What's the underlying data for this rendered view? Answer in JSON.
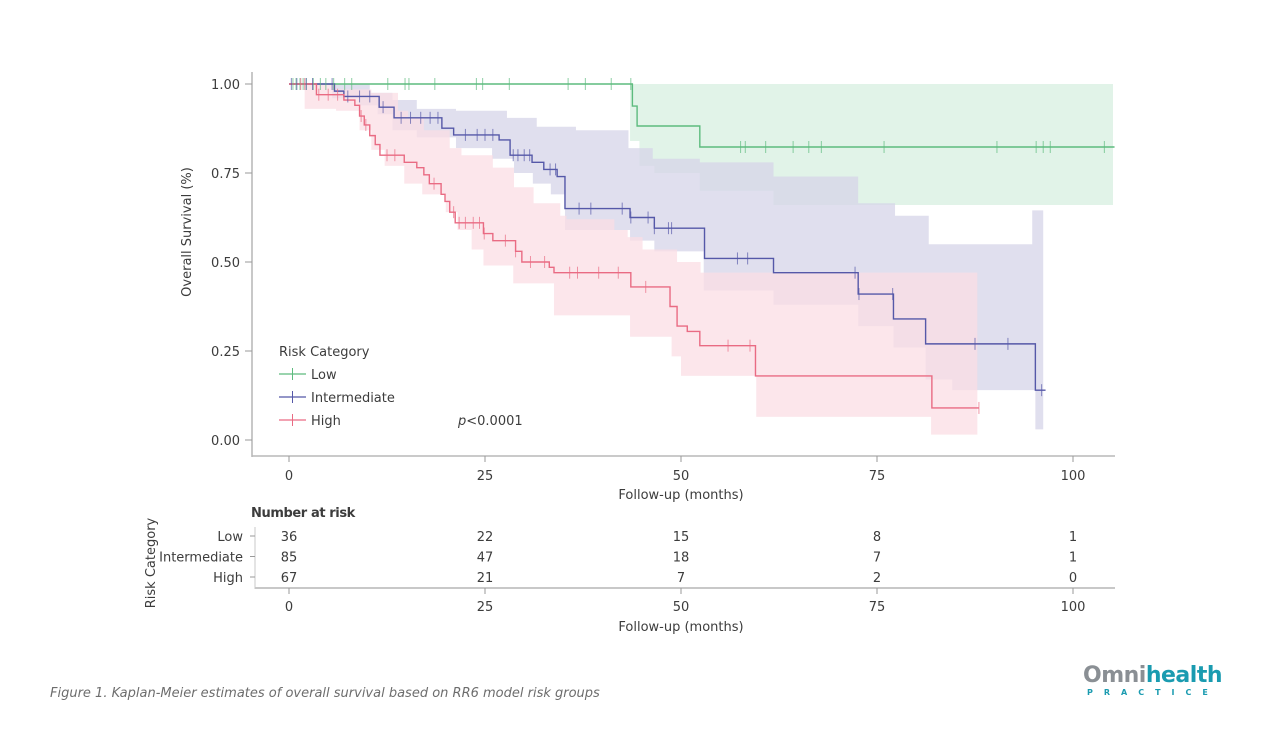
{
  "caption": "Figure 1. Kaplan-Meier estimates of overall survival based on RR6 model risk groups",
  "logo": {
    "part1": "Omni",
    "part2": "health",
    "sub": "PRACTICE"
  },
  "chart_data": {
    "type": "line",
    "subtype": "kaplan-meier",
    "title": "",
    "xlabel": "Follow-up (months)",
    "ylabel": "Overall Survival (%)",
    "xlim": [
      -5,
      105
    ],
    "ylim": [
      -0.04,
      1.03
    ],
    "xticks": [
      0,
      25,
      50,
      75,
      100
    ],
    "xtick_labels": [
      "0",
      "25",
      "50",
      "75",
      "100"
    ],
    "yticks": [
      0,
      0.25,
      0.5,
      0.75,
      1.0
    ],
    "ytick_labels": [
      "0.00",
      "0.25",
      "0.50",
      "0.75",
      "1.00"
    ],
    "grid": false,
    "legend": {
      "title": "Risk Category",
      "position": "bottom-left",
      "entries": [
        "Low",
        "Intermediate",
        "High"
      ]
    },
    "annotation": {
      "prefix": "p",
      "text": "<0.0001"
    },
    "series": [
      {
        "name": "Low",
        "color": "#5dbb7e",
        "band_color": "#d7efe0",
        "steps": [
          [
            0,
            1.0
          ],
          [
            43.8,
            0.938
          ],
          [
            44.4,
            0.882
          ],
          [
            52.4,
            0.823
          ],
          [
            105.3,
            0.823
          ]
        ],
        "censored": [
          0.5,
          0.9,
          1.4,
          1.8,
          2.2,
          3.1,
          4.0,
          4.7,
          5.7,
          7.1,
          8.0,
          12.6,
          14.8,
          15.3,
          18.6,
          23.9,
          24.7,
          28.1,
          35.6,
          37.8,
          41.1,
          43.6,
          57.6,
          58.2,
          60.8,
          64.3,
          66.3,
          67.9,
          75.9,
          90.3,
          95.3,
          96.2,
          97.1,
          104.0
        ],
        "ci_upper": [
          [
            0,
            1.0
          ],
          [
            105.1,
            1.0
          ]
        ],
        "ci_lower": [
          [
            0,
            1.0
          ],
          [
            43.5,
            0.84
          ],
          [
            44.7,
            0.77
          ],
          [
            46.6,
            0.75
          ],
          [
            52.4,
            0.7
          ],
          [
            61.8,
            0.66
          ],
          [
            105.1,
            0.66
          ]
        ]
      },
      {
        "name": "Intermediate",
        "color": "#5558a8",
        "band_color": "#d5d4e8",
        "steps": [
          [
            0,
            1.0
          ],
          [
            5.8,
            0.98
          ],
          [
            7.0,
            0.965
          ],
          [
            11.5,
            0.935
          ],
          [
            13.4,
            0.905
          ],
          [
            19.5,
            0.876
          ],
          [
            21.0,
            0.857
          ],
          [
            26.8,
            0.843
          ],
          [
            28.2,
            0.8
          ],
          [
            31.0,
            0.78
          ],
          [
            32.5,
            0.76
          ],
          [
            34.2,
            0.74
          ],
          [
            35.2,
            0.65
          ],
          [
            43.5,
            0.625
          ],
          [
            46.6,
            0.595
          ],
          [
            53.0,
            0.51
          ],
          [
            61.8,
            0.47
          ],
          [
            72.6,
            0.41
          ],
          [
            77.1,
            0.34
          ],
          [
            81.2,
            0.27
          ],
          [
            95.2,
            0.14
          ],
          [
            96.5,
            0.14
          ]
        ],
        "censored": [
          0.3,
          1.0,
          2.2,
          3.0,
          5.5,
          7.5,
          9.0,
          10.3,
          12.0,
          14.3,
          15.5,
          16.8,
          18.0,
          19.0,
          22.5,
          24.0,
          25.0,
          26.0,
          28.6,
          29.2,
          30.0,
          30.7,
          33.3,
          34.0,
          37.0,
          38.5,
          42.5,
          43.6,
          45.8,
          46.6,
          48.4,
          48.8,
          57.2,
          58.5,
          72.2,
          72.7,
          77.0,
          87.5,
          91.7,
          96.0
        ],
        "ci_upper": [
          [
            5.5,
            1.0
          ],
          [
            10.3,
            0.975
          ],
          [
            13.2,
            0.955
          ],
          [
            16.3,
            0.93
          ],
          [
            21.3,
            0.925
          ],
          [
            27.8,
            0.905
          ],
          [
            31.6,
            0.88
          ],
          [
            36.6,
            0.87
          ],
          [
            43.3,
            0.82
          ],
          [
            46.4,
            0.79
          ],
          [
            52.4,
            0.78
          ],
          [
            61.8,
            0.74
          ],
          [
            72.6,
            0.665
          ],
          [
            77.3,
            0.63
          ],
          [
            81.6,
            0.55
          ],
          [
            94.8,
            0.55
          ],
          [
            94.8,
            0.645
          ],
          [
            96.2,
            0.645
          ]
        ],
        "ci_lower": [
          [
            5.5,
            0.96
          ],
          [
            9.0,
            0.94
          ],
          [
            11.3,
            0.915
          ],
          [
            13.2,
            0.87
          ],
          [
            16.3,
            0.85
          ],
          [
            21.3,
            0.82
          ],
          [
            25.9,
            0.79
          ],
          [
            28.7,
            0.75
          ],
          [
            31.1,
            0.72
          ],
          [
            33.4,
            0.69
          ],
          [
            35.2,
            0.59
          ],
          [
            43.5,
            0.56
          ],
          [
            46.6,
            0.53
          ],
          [
            52.9,
            0.42
          ],
          [
            61.8,
            0.38
          ],
          [
            72.6,
            0.32
          ],
          [
            77.1,
            0.26
          ],
          [
            81.2,
            0.17
          ],
          [
            84.6,
            0.14
          ],
          [
            95.2,
            0.14
          ],
          [
            95.2,
            0.03
          ],
          [
            96.2,
            0.03
          ]
        ]
      },
      {
        "name": "High",
        "color": "#e96b83",
        "band_color": "#fbdde4",
        "steps": [
          [
            0,
            1.0
          ],
          [
            3.5,
            0.97
          ],
          [
            7.0,
            0.955
          ],
          [
            8.4,
            0.94
          ],
          [
            9.0,
            0.91
          ],
          [
            9.6,
            0.885
          ],
          [
            10.3,
            0.855
          ],
          [
            11.0,
            0.83
          ],
          [
            11.6,
            0.8
          ],
          [
            14.7,
            0.78
          ],
          [
            16.3,
            0.765
          ],
          [
            17.2,
            0.745
          ],
          [
            17.9,
            0.72
          ],
          [
            19.4,
            0.69
          ],
          [
            19.9,
            0.67
          ],
          [
            20.5,
            0.64
          ],
          [
            21.2,
            0.61
          ],
          [
            24.8,
            0.58
          ],
          [
            26.0,
            0.56
          ],
          [
            28.9,
            0.53
          ],
          [
            29.7,
            0.5
          ],
          [
            33.2,
            0.485
          ],
          [
            33.8,
            0.47
          ],
          [
            43.6,
            0.43
          ],
          [
            48.6,
            0.375
          ],
          [
            49.5,
            0.32
          ],
          [
            50.8,
            0.305
          ],
          [
            52.4,
            0.265
          ],
          [
            59.5,
            0.18
          ],
          [
            82.0,
            0.09
          ],
          [
            88.0,
            0.09
          ]
        ],
        "censored": [
          1.5,
          2.0,
          3.8,
          5.0,
          6.2,
          9.2,
          9.8,
          12.5,
          13.5,
          18.5,
          21.0,
          21.7,
          22.5,
          23.5,
          24.3,
          24.9,
          27.6,
          28.9,
          30.8,
          32.6,
          35.8,
          36.8,
          39.5,
          42.0,
          45.5,
          56.0,
          58.8,
          88.0
        ],
        "ci_upper": [
          [
            2.0,
            1.0
          ],
          [
            6.0,
            0.985
          ],
          [
            10.5,
            0.975
          ],
          [
            13.9,
            0.925
          ],
          [
            15.2,
            0.905
          ],
          [
            17.2,
            0.87
          ],
          [
            20.5,
            0.82
          ],
          [
            22.0,
            0.8
          ],
          [
            26.0,
            0.765
          ],
          [
            28.7,
            0.71
          ],
          [
            31.2,
            0.665
          ],
          [
            34.6,
            0.63
          ],
          [
            35.4,
            0.62
          ],
          [
            41.5,
            0.59
          ],
          [
            43.2,
            0.57
          ],
          [
            45.1,
            0.535
          ],
          [
            49.5,
            0.5
          ],
          [
            52.5,
            0.47
          ],
          [
            87.8,
            0.5
          ]
        ],
        "ci_lower": [
          [
            3.5,
            0.93
          ],
          [
            6.0,
            0.925
          ],
          [
            9.0,
            0.87
          ],
          [
            10.5,
            0.815
          ],
          [
            12.2,
            0.77
          ],
          [
            14.7,
            0.72
          ],
          [
            17.0,
            0.69
          ],
          [
            20.0,
            0.64
          ],
          [
            21.5,
            0.59
          ],
          [
            23.3,
            0.535
          ],
          [
            24.8,
            0.49
          ],
          [
            28.6,
            0.44
          ],
          [
            33.8,
            0.35
          ],
          [
            43.5,
            0.29
          ],
          [
            48.8,
            0.235
          ],
          [
            50.0,
            0.18
          ],
          [
            59.6,
            0.065
          ],
          [
            81.9,
            0.015
          ],
          [
            87.8,
            0.015
          ]
        ]
      }
    ],
    "risk_table": {
      "title": "Number at risk",
      "ylabel": "Risk Category",
      "xlabel": "Follow-up (months)",
      "times": [
        0,
        25,
        50,
        75,
        100
      ],
      "rows": [
        {
          "label": "Low",
          "values": [
            36,
            22,
            15,
            8,
            1
          ]
        },
        {
          "label": "Intermediate",
          "values": [
            85,
            47,
            18,
            7,
            1
          ]
        },
        {
          "label": "High",
          "values": [
            67,
            21,
            7,
            2,
            0
          ]
        }
      ]
    }
  }
}
